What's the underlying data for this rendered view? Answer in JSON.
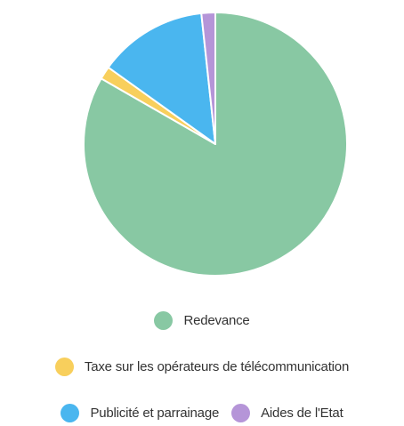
{
  "chart_data": {
    "type": "pie",
    "title": "",
    "categories": [
      "Redevance",
      "Taxe sur les opérateurs de télécommunication",
      "Publicité et parrainage",
      "Aides de l'Etat"
    ],
    "values": [
      83.3,
      1.6,
      13.4,
      1.7
    ],
    "unit": "%",
    "legend_position": "bottom",
    "colors": [
      "#88c8a3",
      "#f8cf5c",
      "#4ab6ef",
      "#b595d8"
    ]
  }
}
